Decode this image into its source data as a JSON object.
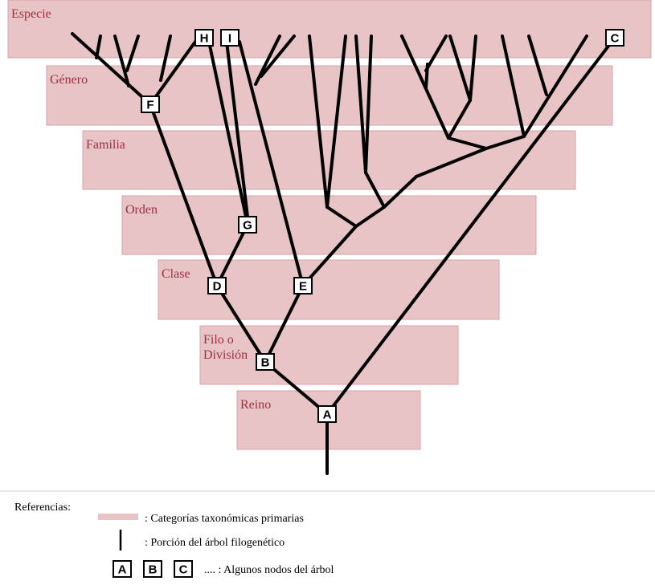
{
  "categories": [
    {
      "label": [
        "Especie"
      ]
    },
    {
      "label": [
        "Género"
      ]
    },
    {
      "label": [
        "Familia"
      ]
    },
    {
      "label": [
        "Orden"
      ]
    },
    {
      "label": [
        "Clase"
      ]
    },
    {
      "label": [
        "Filo o",
        "División"
      ]
    },
    {
      "label": [
        "Reino"
      ]
    }
  ],
  "nodes": [
    {
      "label": "A"
    },
    {
      "label": "B"
    },
    {
      "label": "C"
    },
    {
      "label": "D"
    },
    {
      "label": "E"
    },
    {
      "label": "F"
    },
    {
      "label": "G"
    },
    {
      "label": "H"
    },
    {
      "label": "I"
    }
  ],
  "legend": {
    "title": "Referencias:",
    "categories": ": Categorías taxonómicas primarias",
    "tree": ": Porción del árbol filogenético",
    "node_examples": [
      "A",
      "B",
      "C"
    ],
    "nodes": ".... : Algunos nodos del árbol"
  }
}
